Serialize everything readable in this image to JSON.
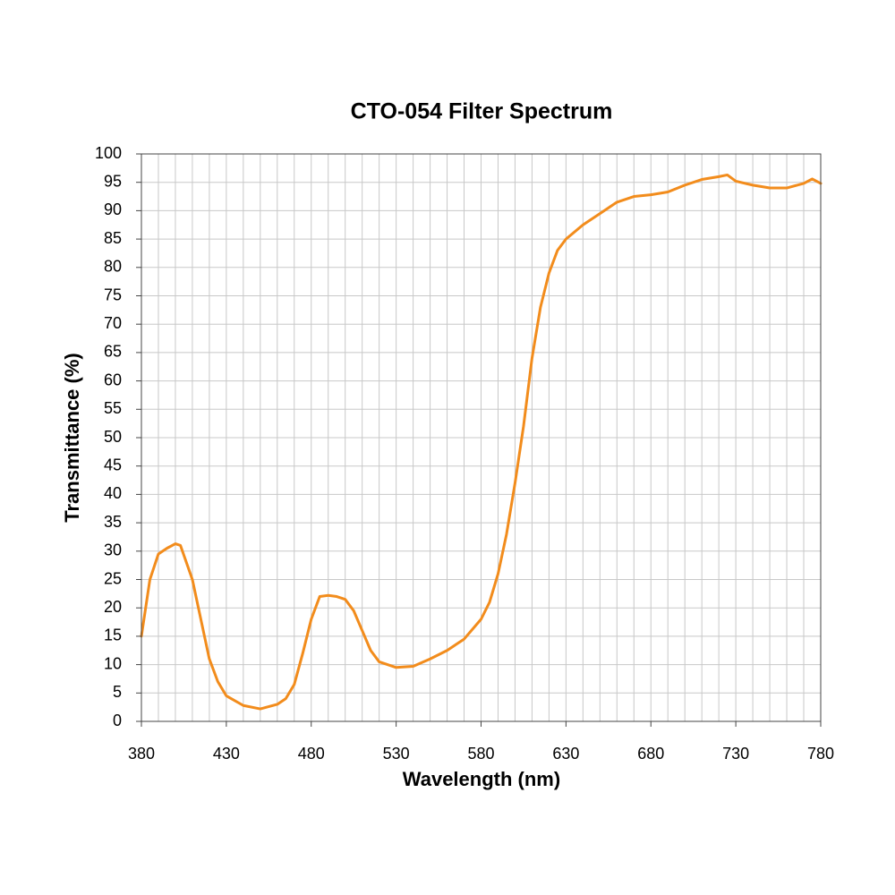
{
  "chart_data": {
    "type": "line",
    "title": "CTO-054 Filter Spectrum",
    "x_label": "Wavelength (nm)",
    "y_label": "Transmittance (%)",
    "xlim": [
      380,
      780
    ],
    "xticks": [
      380,
      430,
      480,
      530,
      580,
      630,
      680,
      730,
      780
    ],
    "xgrid": [
      380,
      390,
      400,
      410,
      420,
      430,
      440,
      450,
      460,
      470,
      480,
      490,
      500,
      510,
      520,
      530,
      540,
      550,
      560,
      570,
      580,
      590,
      600,
      610,
      620,
      630,
      640,
      650,
      660,
      670,
      680,
      690,
      700,
      710,
      720,
      730,
      740,
      750,
      760,
      770,
      780
    ],
    "ylim": [
      0,
      100
    ],
    "yticks": [
      0,
      5,
      10,
      15,
      20,
      25,
      30,
      35,
      40,
      45,
      50,
      55,
      60,
      65,
      70,
      75,
      80,
      85,
      90,
      95,
      100
    ],
    "grid": true,
    "series": [
      {
        "name": "CTO-054",
        "color": "#f28c1c",
        "x": [
          380,
          385,
          390,
          395,
          400,
          403,
          410,
          415,
          420,
          425,
          430,
          440,
          450,
          460,
          465,
          470,
          475,
          480,
          485,
          490,
          495,
          500,
          505,
          510,
          515,
          520,
          530,
          540,
          550,
          560,
          570,
          580,
          585,
          590,
          595,
          600,
          605,
          610,
          615,
          620,
          625,
          630,
          640,
          650,
          660,
          670,
          680,
          690,
          700,
          710,
          720,
          725,
          730,
          740,
          750,
          760,
          770,
          775,
          780
        ],
        "values": [
          15,
          25,
          29.5,
          30.5,
          31.3,
          31,
          25,
          18,
          11,
          7,
          4.5,
          2.8,
          2.2,
          3,
          4,
          6.5,
          12,
          18,
          22,
          22.2,
          22,
          21.5,
          19.5,
          16,
          12.5,
          10.5,
          9.5,
          9.7,
          11,
          12.5,
          14.5,
          18,
          21,
          26,
          33,
          42,
          52,
          64,
          73,
          79,
          83,
          85,
          87.5,
          89.5,
          91.5,
          92.5,
          92.8,
          93.3,
          94.5,
          95.5,
          96,
          96.3,
          95.2,
          94.5,
          94,
          94,
          94.8,
          95.6,
          94.8
        ]
      }
    ]
  }
}
